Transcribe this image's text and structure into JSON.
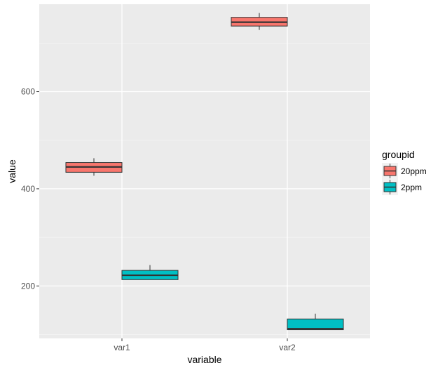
{
  "chart_data": {
    "type": "boxplot",
    "xlabel": "variable",
    "ylabel": "value",
    "categories": [
      "var1",
      "var2"
    ],
    "yticks": [
      200,
      400,
      600
    ],
    "ylim": [
      92,
      780
    ],
    "grid": true,
    "legend": {
      "title": "groupid",
      "placement": "right",
      "entries": [
        {
          "name": "20ppm",
          "color": "#F8766D"
        },
        {
          "name": "2ppm",
          "color": "#00BFC4"
        }
      ]
    },
    "series": [
      {
        "name": "20ppm",
        "color": "#F8766D",
        "boxes": [
          {
            "category": "var1",
            "min": 427,
            "q1": 434,
            "median": 445,
            "q3": 454,
            "max": 463
          },
          {
            "category": "var2",
            "min": 727,
            "q1": 735,
            "median": 743,
            "q3": 753,
            "max": 762
          }
        ]
      },
      {
        "name": "2ppm",
        "color": "#00BFC4",
        "boxes": [
          {
            "category": "var1",
            "min": 213,
            "q1": 213,
            "median": 222,
            "q3": 232,
            "max": 243
          },
          {
            "category": "var2",
            "min": 110,
            "q1": 110,
            "median": 112,
            "q3": 132,
            "max": 143
          }
        ]
      }
    ]
  }
}
